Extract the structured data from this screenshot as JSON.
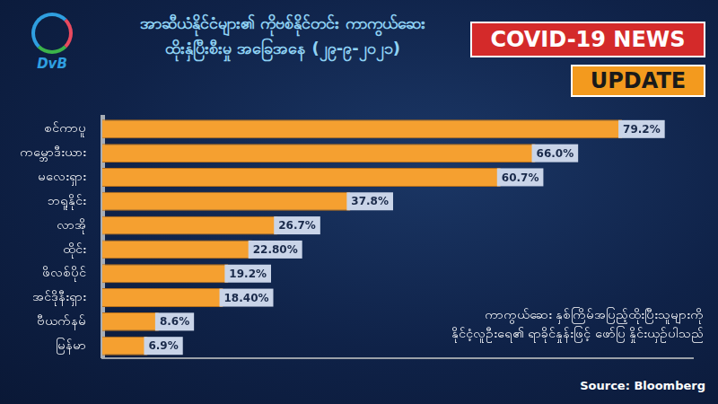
{
  "header": {
    "logo": "DvB",
    "badges": [
      "COVID-19 NEWS",
      "UPDATE"
    ]
  },
  "chart_data": {
    "type": "bar",
    "orientation": "horizontal",
    "title": "အာဆီယံနိုင်ငံများ၏ ကိုဗစ်နိုင်တင်း ကာကွယ်ဆေး\nထိုးနှံပြီးစီးမှု အခြေအနေ (၂၉-၉-၂၀၂၁)",
    "annotations": [
      "ကာကွယ်ဆေး နှစ်ကြိမ်အပြည့်ထိုးပြီးသူများကို\nနိုင်ငံ့လူဦးရေ၏ ရာခိုင်နှုန်းဖြင့် ဖော်ပြ နှိုင်းယှဉ်ပါသည်",
      "Source: Bloomberg"
    ],
    "categories": [
      "စင်ကာပူ",
      "ကမ္ဘောဒီးယား",
      "မလေးရှား",
      "ဘရူနိုင်း",
      "လာအို",
      "ထိုင်း",
      "ဖိလစ်ပိုင်",
      "အင်ဒိုနီးရှား",
      "ဗီယက်နမ်",
      "မြန်မာ"
    ],
    "values": [
      79.2,
      66.0,
      60.7,
      37.8,
      26.7,
      22.8,
      19.2,
      18.4,
      8.6,
      6.9
    ],
    "value_labels": [
      "79.2%",
      "66.0%",
      "60.7%",
      "37.8%",
      "26.7%",
      "22.80%",
      "19.2%",
      "18.40%",
      "8.6%",
      "6.9%"
    ],
    "data_labels": true,
    "color": "#f5a030",
    "xlim": [
      0,
      90
    ],
    "xticks": [],
    "tick_labels": "y",
    "grid": false
  }
}
